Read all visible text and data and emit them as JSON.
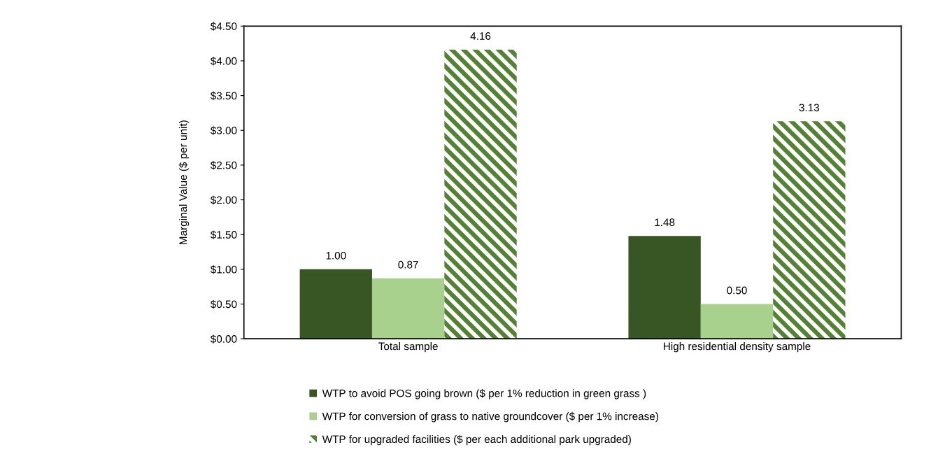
{
  "chart_data": {
    "type": "bar",
    "ylabel": "Marginal Value ($ per unit)",
    "categories": [
      "Total sample",
      "High residential density sample"
    ],
    "series": [
      {
        "name": "WTP to avoid POS going brown ($ per 1% reduction in green grass )",
        "color": "#375623",
        "values": [
          1.0,
          1.48
        ],
        "value_labels": [
          "1.00",
          "1.48"
        ]
      },
      {
        "name": "WTP for conversion of grass to native groundcover ($ per 1% increase)",
        "color": "#a9d18e",
        "values": [
          0.87,
          0.5
        ],
        "value_labels": [
          "0.87",
          "0.50"
        ]
      },
      {
        "name": "WTP for upgraded facilities ($ per each additional park upgraded)",
        "color": "#548235",
        "values": [
          4.16,
          3.13
        ],
        "value_labels": [
          "4.16",
          "3.13"
        ]
      }
    ],
    "ylim": [
      0,
      4.5
    ],
    "yticks": [
      {
        "value": 0,
        "label": "$0.00"
      },
      {
        "value": 0.5,
        "label": "$0.50"
      },
      {
        "value": 1,
        "label": "$1.00"
      },
      {
        "value": 1.5,
        "label": "$1.50"
      },
      {
        "value": 2,
        "label": "$2.00"
      },
      {
        "value": 2.5,
        "label": "$2.50"
      },
      {
        "value": 3,
        "label": "$3.00"
      },
      {
        "value": 3.5,
        "label": "$3.50"
      },
      {
        "value": 4,
        "label": "$4.00"
      },
      {
        "value": 4.5,
        "label": "$4.50"
      }
    ],
    "grid": false,
    "legend": "bottom"
  }
}
